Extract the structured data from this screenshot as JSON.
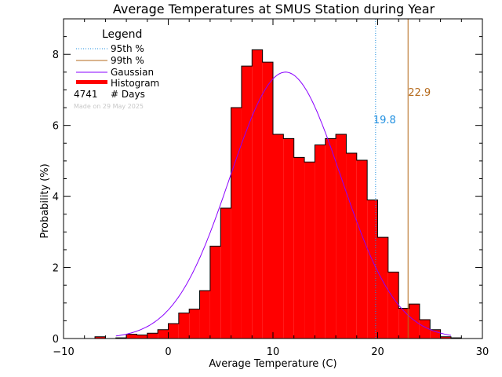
{
  "chart_data": {
    "type": "bar",
    "title": "Average Temperatures at SMUS Station during Year",
    "xlabel": "Average Temperature (C)",
    "ylabel": "Probability (%)",
    "xlim": [
      -10,
      30
    ],
    "ylim": [
      0,
      9
    ],
    "x_ticks": [
      -10,
      0,
      10,
      20,
      30
    ],
    "y_ticks": [
      0,
      2,
      4,
      6,
      8
    ],
    "bin_width": 1,
    "bins": [
      {
        "x": -7,
        "value": 0.05
      },
      {
        "x": -6,
        "value": 0.0
      },
      {
        "x": -5,
        "value": 0.02
      },
      {
        "x": -4,
        "value": 0.12
      },
      {
        "x": -3,
        "value": 0.1
      },
      {
        "x": -2,
        "value": 0.15
      },
      {
        "x": -1,
        "value": 0.25
      },
      {
        "x": 0,
        "value": 0.42
      },
      {
        "x": 1,
        "value": 0.72
      },
      {
        "x": 2,
        "value": 0.83
      },
      {
        "x": 3,
        "value": 1.35
      },
      {
        "x": 4,
        "value": 2.6
      },
      {
        "x": 5,
        "value": 3.67
      },
      {
        "x": 6,
        "value": 6.5
      },
      {
        "x": 7,
        "value": 7.67
      },
      {
        "x": 8,
        "value": 8.13
      },
      {
        "x": 9,
        "value": 7.78
      },
      {
        "x": 10,
        "value": 5.75
      },
      {
        "x": 11,
        "value": 5.63
      },
      {
        "x": 12,
        "value": 5.1
      },
      {
        "x": 13,
        "value": 4.97
      },
      {
        "x": 14,
        "value": 5.45
      },
      {
        "x": 15,
        "value": 5.63
      },
      {
        "x": 16,
        "value": 5.75
      },
      {
        "x": 17,
        "value": 5.22
      },
      {
        "x": 18,
        "value": 5.02
      },
      {
        "x": 19,
        "value": 3.9
      },
      {
        "x": 20,
        "value": 2.85
      },
      {
        "x": 21,
        "value": 1.87
      },
      {
        "x": 22,
        "value": 0.85
      },
      {
        "x": 23,
        "value": 0.97
      },
      {
        "x": 24,
        "value": 0.53
      },
      {
        "x": 25,
        "value": 0.25
      },
      {
        "x": 26,
        "value": 0.05
      },
      {
        "x": 27,
        "value": 0.02
      }
    ],
    "gaussian": {
      "mean": 11.2,
      "sigma": 5.3,
      "peak": 7.5
    },
    "p95": {
      "value": 19.8,
      "label": "19.8",
      "color": "#1f8fe0"
    },
    "p99": {
      "value": 22.9,
      "label": "22.9",
      "color": "#b56a1c"
    },
    "colors": {
      "histogram": "#ff0000",
      "gaussian": "#8a00ff",
      "axis": "#000000"
    },
    "legend": {
      "title": "Legend",
      "position": "top-left",
      "entries": [
        "95th %",
        "99th %",
        "Gaussian",
        "Histogram"
      ],
      "count_value": "4741",
      "count_label": "# Days",
      "made_on": "Made on 29 May 2025"
    }
  }
}
